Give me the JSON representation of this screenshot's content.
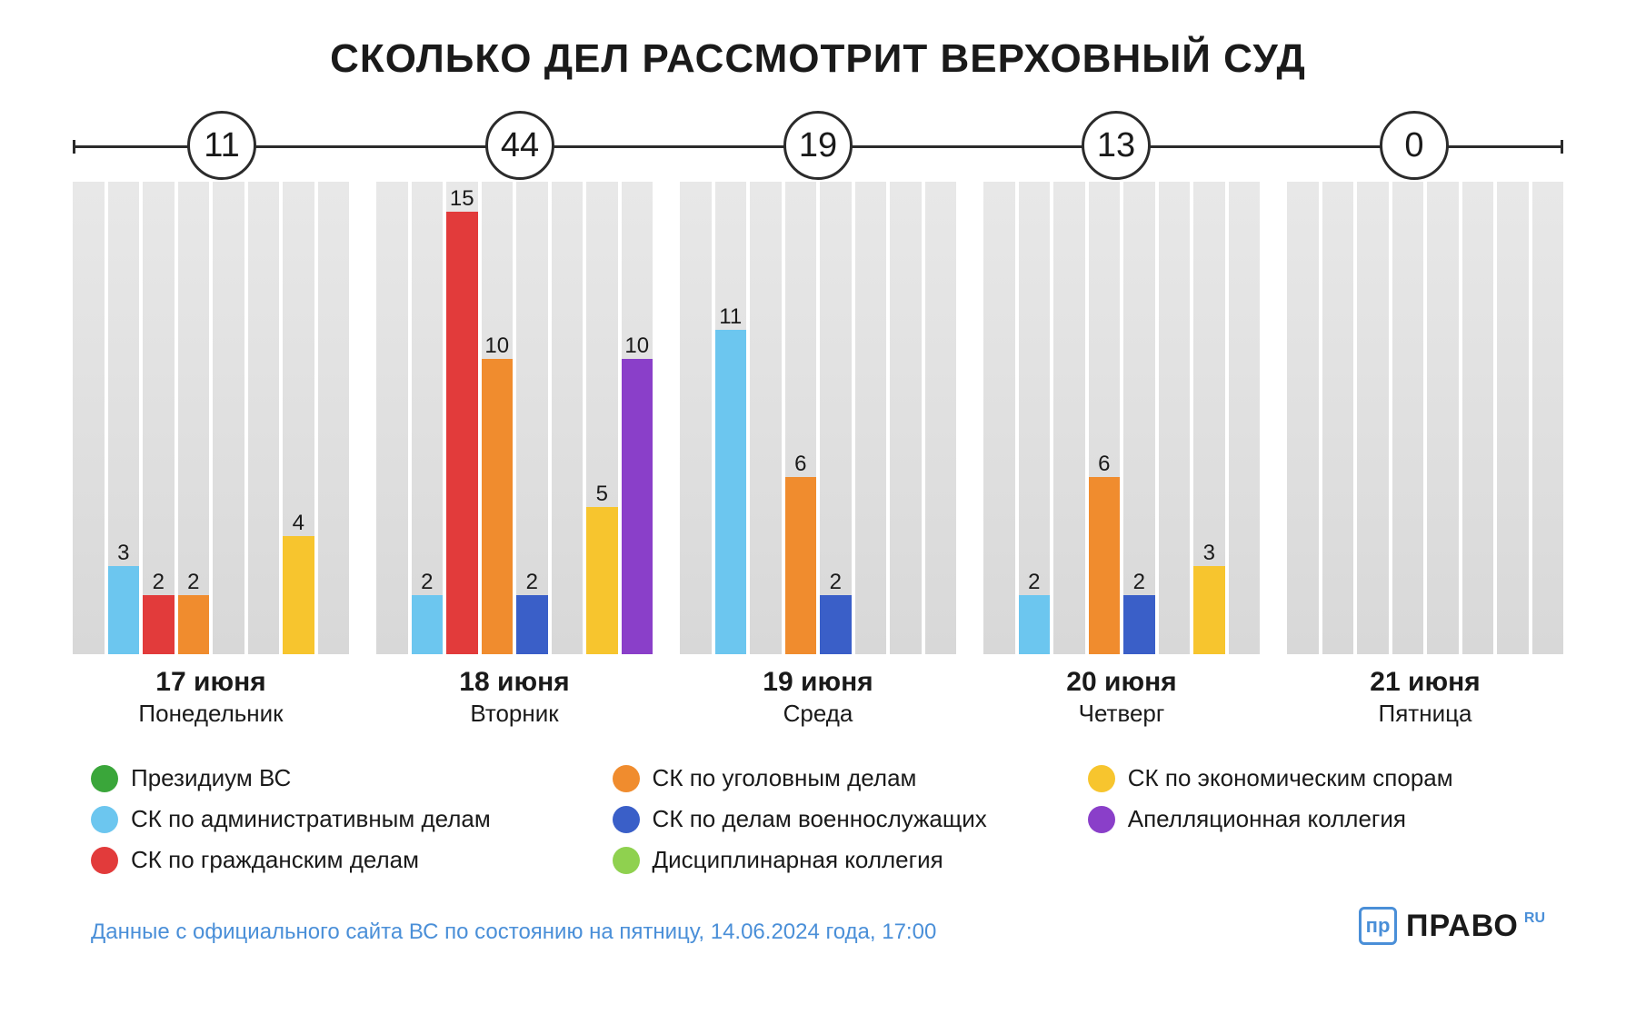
{
  "title": "СКОЛЬКО ДЕЛ РАССМОТРИТ ВЕРХОВНЫЙ СУД",
  "chart": {
    "type": "grouped-bar",
    "max_value": 16,
    "bar_slot_bg_gradient": [
      "#e8e8e8",
      "#d8d8d8"
    ],
    "background_color": "#ffffff",
    "title_fontsize": 44,
    "label_fontsize": 24,
    "day_date_fontsize": 30,
    "day_name_fontsize": 26,
    "categories": [
      {
        "key": "presidium",
        "label": "Президиум ВС",
        "color": "#3aa63a"
      },
      {
        "key": "admin",
        "label": "СК по административным делам",
        "color": "#6cc6ef"
      },
      {
        "key": "civil",
        "label": "СК по гражданским делам",
        "color": "#e23b3b"
      },
      {
        "key": "criminal",
        "label": "СК по уголовным делам",
        "color": "#f08c2e"
      },
      {
        "key": "military",
        "label": "СК по делам военнослужащих",
        "color": "#3a5fc8"
      },
      {
        "key": "discipline",
        "label": "Дисциплинарная коллегия",
        "color": "#8fd14f"
      },
      {
        "key": "economic",
        "label": "СК по экономическим спорам",
        "color": "#f7c52e"
      },
      {
        "key": "appeal",
        "label": "Апелляционная коллегия",
        "color": "#8a3fc9"
      }
    ],
    "days": [
      {
        "date": "17 июня",
        "weekday": "Понедельник",
        "total": 11,
        "values": {
          "presidium": 0,
          "admin": 3,
          "civil": 2,
          "criminal": 2,
          "military": 0,
          "discipline": 0,
          "economic": 4,
          "appeal": 0
        }
      },
      {
        "date": "18 июня",
        "weekday": "Вторник",
        "total": 44,
        "values": {
          "presidium": 0,
          "admin": 2,
          "civil": 15,
          "criminal": 10,
          "military": 2,
          "discipline": 0,
          "economic": 5,
          "appeal": 10
        }
      },
      {
        "date": "19 июня",
        "weekday": "Среда",
        "total": 19,
        "values": {
          "presidium": 0,
          "admin": 11,
          "civil": 0,
          "criminal": 6,
          "military": 2,
          "discipline": 0,
          "economic": 0,
          "appeal": 0
        }
      },
      {
        "date": "20 июня",
        "weekday": "Четверг",
        "total": 13,
        "values": {
          "presidium": 0,
          "admin": 2,
          "civil": 0,
          "criminal": 6,
          "military": 2,
          "discipline": 0,
          "economic": 3,
          "appeal": 0
        }
      },
      {
        "date": "21 июня",
        "weekday": "Пятница",
        "total": 0,
        "values": {
          "presidium": 0,
          "admin": 0,
          "civil": 0,
          "criminal": 0,
          "military": 0,
          "discipline": 0,
          "economic": 0,
          "appeal": 0
        }
      }
    ]
  },
  "legend_layout": [
    [
      "presidium",
      "criminal",
      "economic"
    ],
    [
      "admin",
      "military",
      "appeal"
    ],
    [
      "civil",
      "discipline",
      null
    ]
  ],
  "source_text": "Данные с официального сайта ВС по состоянию на пятницу, 14.06.2024 года, 17:00",
  "logo": {
    "icon_text": "пр",
    "text": "ПРАВО",
    "suffix": "RU",
    "icon_color": "#4a8fd8",
    "text_color": "#1a1a1a"
  }
}
